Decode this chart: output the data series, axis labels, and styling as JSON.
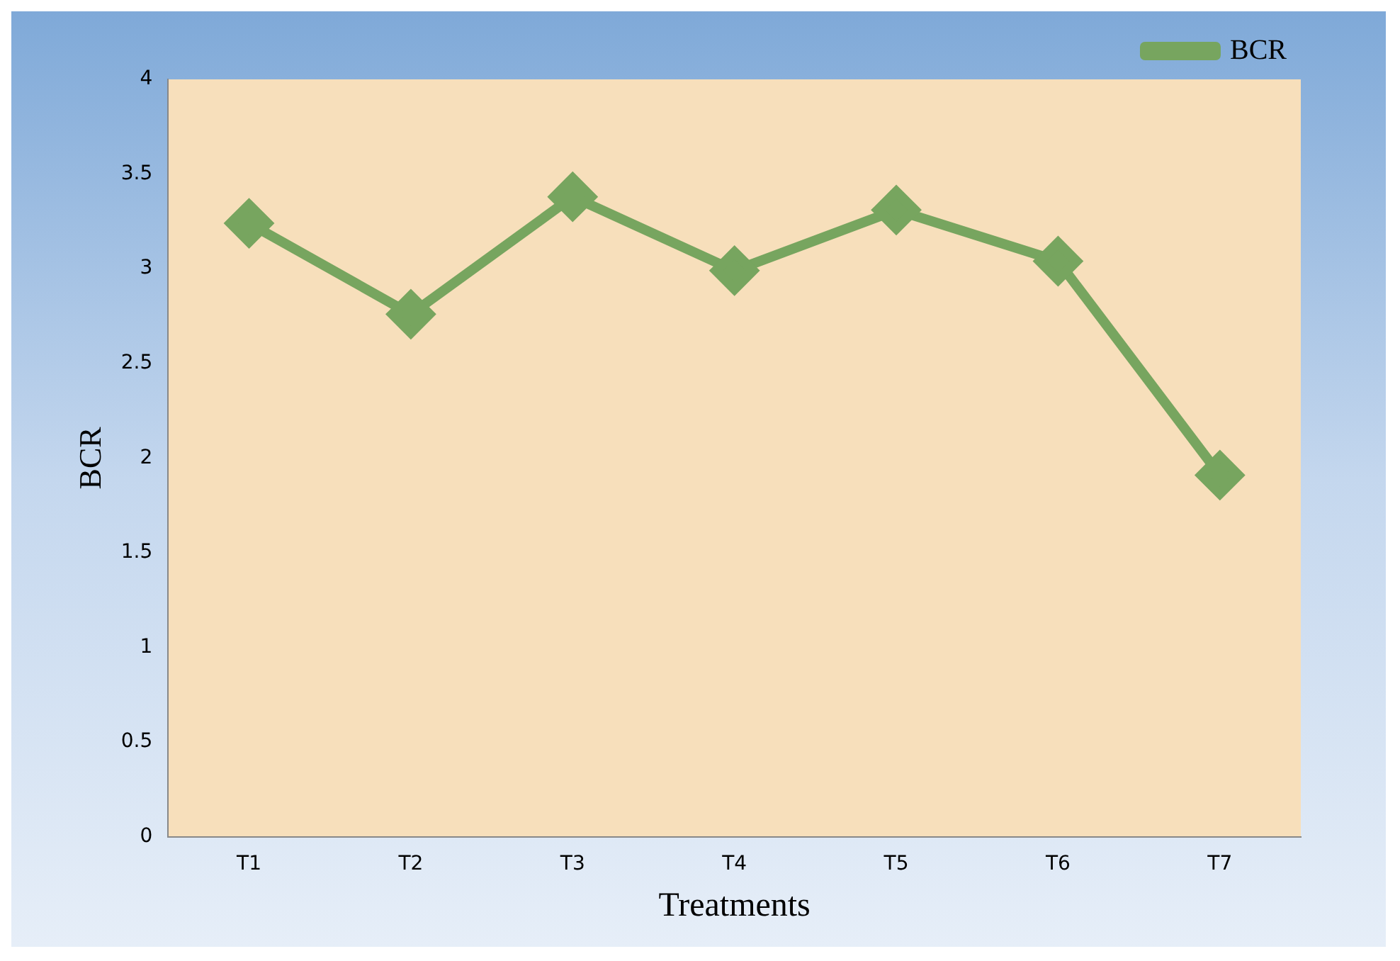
{
  "chart_data": {
    "type": "line",
    "xlabel": "Treatments",
    "ylabel": "BCR",
    "categories": [
      "T1",
      "T2",
      "T3",
      "T4",
      "T5",
      "T6",
      "T7"
    ],
    "series": [
      {
        "name": "BCR",
        "color": "#77a55f",
        "values": [
          3.24,
          2.76,
          3.38,
          2.99,
          3.31,
          3.04,
          1.91
        ]
      }
    ],
    "ylim": [
      0,
      4
    ],
    "yticks": [
      0,
      0.5,
      1,
      1.5,
      2,
      2.5,
      3,
      3.5,
      4
    ],
    "grid": false,
    "legend": "top right",
    "marker": "diamond",
    "line_style": "solid"
  }
}
